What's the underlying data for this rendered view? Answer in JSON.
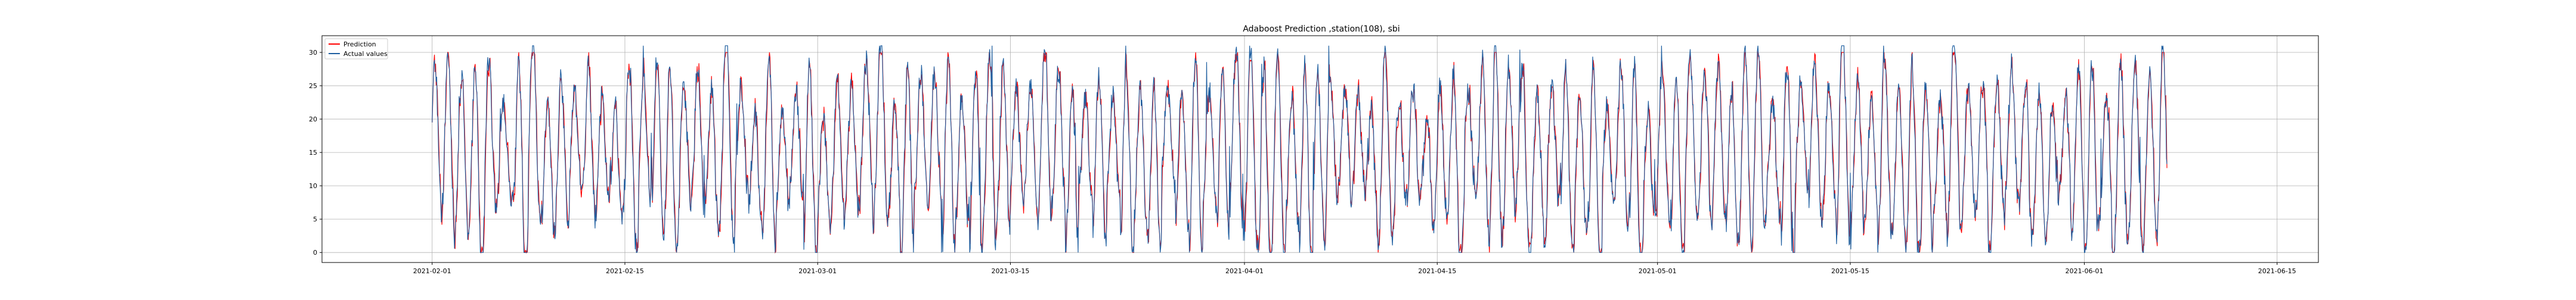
{
  "chart_data": {
    "type": "line",
    "title": "Adaboost Prediction ,station(108), sbi",
    "xlabel": "",
    "ylabel": "",
    "x_range": [
      "2021-01-24",
      "2021-06-18"
    ],
    "x_data_range": [
      "2021-02-01",
      "2021-06-07"
    ],
    "x_ticks": [
      "2021-02-01",
      "2021-02-15",
      "2021-03-01",
      "2021-03-15",
      "2021-04-01",
      "2021-04-15",
      "2021-05-01",
      "2021-05-15",
      "2021-06-01",
      "2021-06-15"
    ],
    "ylim": [
      -1.5,
      32.5
    ],
    "y_ticks": [
      0,
      5,
      10,
      15,
      20,
      25,
      30
    ],
    "grid": true,
    "legend_placement": "top-left",
    "series": [
      {
        "name": "Prediction",
        "color": "#ff0000",
        "sampling": "hourly",
        "min": 0,
        "max": 30
      },
      {
        "name": "Actual values",
        "color": "#1f5fa0",
        "sampling": "hourly",
        "min": 0,
        "max": 31
      }
    ]
  }
}
